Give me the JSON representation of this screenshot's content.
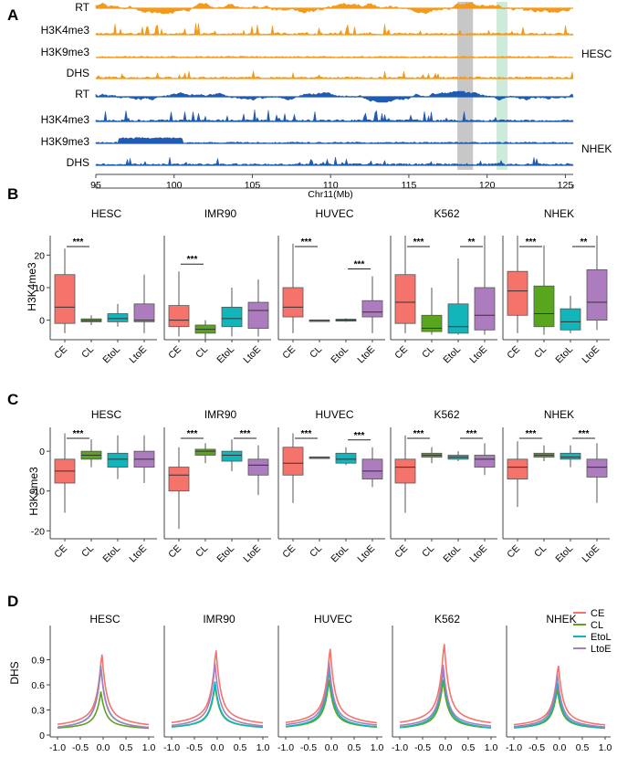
{
  "chart_data": [
    {
      "panel": "A",
      "type": "area",
      "xlabel": "Chr11(Mb)",
      "xlim": [
        95,
        125.5
      ],
      "xticks": [
        "95",
        "100",
        "105",
        "110",
        "115",
        "120",
        "125"
      ],
      "groups": [
        {
          "name": "HESC",
          "color": "#f39a1c",
          "tracks": [
            "RT",
            "H3K4me3",
            "H3K9me3",
            "DHS"
          ]
        },
        {
          "name": "NHEK",
          "color": "#1f5bb4",
          "tracks": [
            "RT",
            "H3K4me3",
            "H3K9me3",
            "DHS"
          ]
        }
      ],
      "highlights": [
        {
          "range": [
            118.1,
            119.1
          ],
          "color": "#b4b4b4"
        },
        {
          "range": [
            120.6,
            121.3
          ],
          "color": "#bfe6d2"
        }
      ]
    },
    {
      "panel": "B",
      "type": "boxplot",
      "ylabel": "H3K4me3",
      "ylim": [
        -6,
        26
      ],
      "yticks": [
        0,
        10,
        20
      ],
      "categories": [
        "CE",
        "CL",
        "EtoL",
        "LtoE"
      ],
      "category_colors": [
        "#f5736b",
        "#5aa51e",
        "#12b6ba",
        "#ad7cbe"
      ],
      "panels": [
        {
          "title": "HESC",
          "boxes": [
            [
              -4,
              -1,
              4,
              14,
              22
            ],
            [
              -1.5,
              -0.5,
              -0.1,
              0.4,
              1.5
            ],
            [
              -2,
              -0.5,
              0.5,
              2,
              5
            ],
            [
              -4,
              -0.5,
              0,
              5,
              14
            ]
          ],
          "sig": [
            {
              "pair": [
                0,
                1
              ],
              "label": "***"
            }
          ]
        },
        {
          "title": "IMR90",
          "boxes": [
            [
              -5,
              -2,
              0,
              4.5,
              15
            ],
            [
              -6,
              -4,
              -2.8,
              -1.5,
              0
            ],
            [
              -5,
              -2,
              0.5,
              4,
              10
            ],
            [
              -5,
              -2.5,
              3,
              5.5,
              12.5
            ]
          ],
          "sig": [
            {
              "pair": [
                0,
                1
              ],
              "label": "***"
            }
          ]
        },
        {
          "title": "HUVEC",
          "boxes": [
            [
              -4,
              1,
              4,
              10,
              23.5
            ],
            [
              0,
              0,
              0,
              0,
              0
            ],
            [
              -0.5,
              -0.3,
              0,
              0.3,
              0.6
            ],
            [
              -4,
              1,
              2.5,
              6,
              13.5
            ]
          ],
          "sig": [
            {
              "pair": [
                0,
                1
              ],
              "label": "***"
            },
            {
              "pair": [
                2,
                3
              ],
              "label": "***"
            }
          ]
        },
        {
          "title": "K562",
          "boxes": [
            [
              -4,
              -1,
              5.5,
              14,
              26
            ],
            [
              -4.5,
              -3.5,
              -2.5,
              1.5,
              10
            ],
            [
              -4.5,
              -4,
              -2,
              5,
              19
            ],
            [
              -4.5,
              -3,
              1.5,
              10,
              26
            ]
          ],
          "sig": [
            {
              "pair": [
                0,
                1
              ],
              "label": "***"
            },
            {
              "pair": [
                2,
                3
              ],
              "label": "**"
            }
          ]
        },
        {
          "title": "NHEK",
          "boxes": [
            [
              -4,
              1.5,
              9,
              15,
              26
            ],
            [
              -4.5,
              -2,
              2,
              10.5,
              23
            ],
            [
              -4,
              -3,
              -0.5,
              3.5,
              7.5
            ],
            [
              -3,
              0,
              5.5,
              15.5,
              26
            ]
          ],
          "sig": [
            {
              "pair": [
                0,
                1
              ],
              "label": "***"
            },
            {
              "pair": [
                2,
                3
              ],
              "label": "**"
            }
          ]
        }
      ]
    },
    {
      "panel": "C",
      "type": "boxplot",
      "ylabel": "H3K9me3",
      "ylim": [
        -22,
        6
      ],
      "yticks": [
        0,
        -10,
        -20
      ],
      "categories": [
        "CE",
        "CL",
        "EtoL",
        "LtoE"
      ],
      "category_colors": [
        "#f5736b",
        "#5aa51e",
        "#12b6ba",
        "#ad7cbe"
      ],
      "panels": [
        {
          "title": "HESC",
          "boxes": [
            [
              -15.5,
              -8,
              -5,
              -2,
              4.5
            ],
            [
              -4,
              -2,
              -1,
              0,
              3
            ],
            [
              -7,
              -4,
              -2,
              -0.5,
              4
            ],
            [
              -8,
              -4,
              -2,
              0,
              4
            ]
          ],
          "sig": [
            {
              "pair": [
                0,
                1
              ],
              "label": "***"
            }
          ]
        },
        {
          "title": "IMR90",
          "boxes": [
            [
              -19.5,
              -10,
              -6,
              -4,
              1
            ],
            [
              -3,
              -1,
              0,
              0.5,
              2
            ],
            [
              -5,
              -2.5,
              -1,
              0,
              3
            ],
            [
              -11,
              -6,
              -3.5,
              -2,
              1.5
            ]
          ],
          "sig": [
            {
              "pair": [
                0,
                1
              ],
              "label": "***"
            },
            {
              "pair": [
                2,
                3
              ],
              "label": "***"
            }
          ]
        },
        {
          "title": "HUVEC",
          "boxes": [
            [
              -13,
              -6,
              -3,
              1,
              4.5
            ],
            [
              -1.5,
              -1.5,
              -1.5,
              -1.5,
              -1.5
            ],
            [
              -3.5,
              -3,
              -2,
              -0.5,
              1
            ],
            [
              -9,
              -7,
              -5,
              -2,
              1
            ]
          ],
          "sig": [
            {
              "pair": [
                0,
                1
              ],
              "label": "***"
            },
            {
              "pair": [
                2,
                3
              ],
              "label": "***"
            }
          ]
        },
        {
          "title": "K562",
          "boxes": [
            [
              -15.5,
              -8,
              -4,
              -2,
              4
            ],
            [
              -3,
              -1.5,
              -1,
              -0.5,
              1
            ],
            [
              -2.5,
              -2,
              -1.5,
              -1,
              0
            ],
            [
              -6,
              -4,
              -2,
              -1,
              2
            ]
          ],
          "sig": [
            {
              "pair": [
                0,
                1
              ],
              "label": "***"
            },
            {
              "pair": [
                2,
                3
              ],
              "label": "***"
            }
          ]
        },
        {
          "title": "NHEK",
          "boxes": [
            [
              -14,
              -7,
              -4,
              -2,
              2.5
            ],
            [
              -2.5,
              -1.5,
              -1,
              -0.5,
              1.5
            ],
            [
              -4,
              -2,
              -1.5,
              -0.5,
              1.5
            ],
            [
              -13,
              -6.5,
              -4,
              -2,
              2
            ]
          ],
          "sig": [
            {
              "pair": [
                0,
                1
              ],
              "label": "***"
            },
            {
              "pair": [
                2,
                3
              ],
              "label": "***"
            }
          ]
        }
      ]
    },
    {
      "panel": "D",
      "type": "line",
      "ylabel": "DHS",
      "ylim": [
        0,
        1.2
      ],
      "yticks": [
        "0",
        "0.3",
        "0.6",
        "0.9"
      ],
      "xticks": [
        "-1.0",
        "-0.5",
        "0.0",
        "0.5",
        "1.0"
      ],
      "legend_position": "top-right",
      "series_names": [
        "CE",
        "CL",
        "EtoL",
        "LtoE"
      ],
      "series_colors": [
        "#f5736b",
        "#5aa51e",
        "#12b6ba",
        "#ad7cbe"
      ],
      "panels": [
        {
          "title": "HESC",
          "peaks": [
            1.0,
            0.52,
            0.83,
            0.81
          ],
          "bases": [
            0.1,
            0.07,
            0.07,
            0.07
          ]
        },
        {
          "title": "IMR90",
          "peaks": [
            1.05,
            0.6,
            0.64,
            0.86
          ],
          "bases": [
            0.12,
            0.08,
            0.08,
            0.09
          ]
        },
        {
          "title": "HUVEC",
          "peaks": [
            1.07,
            0.66,
            0.78,
            0.87
          ],
          "bases": [
            0.12,
            0.08,
            0.08,
            0.1
          ]
        },
        {
          "title": "K562",
          "peaks": [
            1.13,
            0.66,
            0.79,
            0.84
          ],
          "bases": [
            0.12,
            0.07,
            0.07,
            0.09
          ]
        },
        {
          "title": "NHEK",
          "peaks": [
            0.86,
            0.55,
            0.63,
            0.73
          ],
          "bases": [
            0.1,
            0.07,
            0.07,
            0.08
          ]
        }
      ]
    }
  ]
}
